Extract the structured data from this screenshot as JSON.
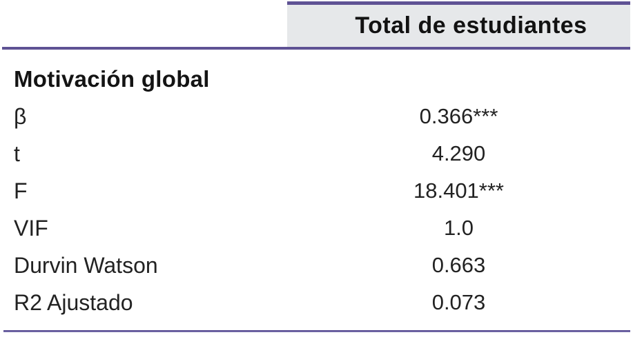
{
  "table": {
    "header": {
      "column_label": "Total de estudiantes"
    },
    "section_title": "Motivación global",
    "rows": [
      {
        "label": "β",
        "value": "0.366***"
      },
      {
        "label": "t",
        "value": "4.290"
      },
      {
        "label": "F",
        "value": "18.401***"
      },
      {
        "label": "VIF",
        "value": "1.0"
      },
      {
        "label": "Durvin Watson",
        "value": "0.663"
      },
      {
        "label": "R2 Ajustado",
        "value": "0.073"
      }
    ]
  },
  "colors": {
    "accent_purple": "#5e5294",
    "header_background": "#e6e8ea",
    "text": "#1b1b1b"
  }
}
